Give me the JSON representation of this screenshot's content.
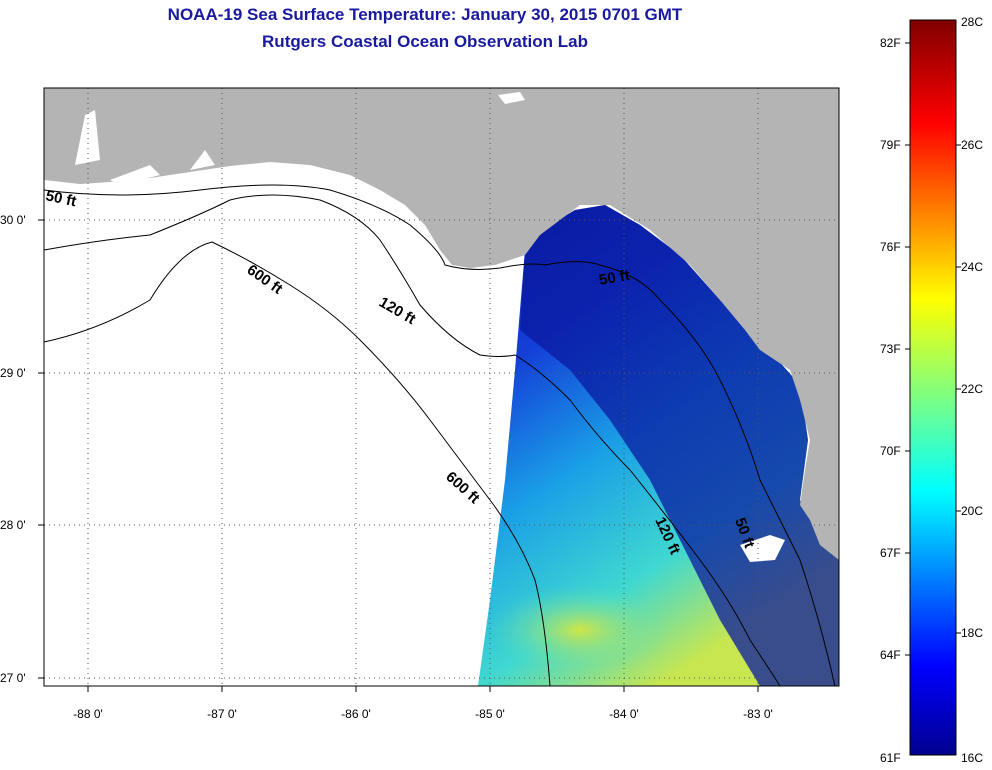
{
  "title": {
    "line1": "NOAA-19 Sea Surface Temperature:  January 30, 2015 0701 GMT",
    "line2": "Rutgers Coastal Ocean Observation Lab"
  },
  "map": {
    "lat_labels": [
      "30 0'",
      "29 0'",
      "28 0'",
      "27 0'"
    ],
    "lon_labels": [
      "-88 0'",
      "-87 0'",
      "-86 0'",
      "-85 0'",
      "-84 0'",
      "-83 0'"
    ],
    "contour_labels": [
      "50 ft",
      "600 ft",
      "120 ft",
      "50 ft",
      "600 ft",
      "120 ft",
      "50 ft"
    ],
    "colors": {
      "land": "#b4b4b4",
      "water_nodata": "#ffffff",
      "sst_cold": "#0a1aa0",
      "sst_mid": "#1aa0e6",
      "sst_warm": "#d8e640"
    }
  },
  "colorbar": {
    "f_labels": [
      "82F",
      "79F",
      "76F",
      "73F",
      "70F",
      "67F",
      "64F",
      "61F"
    ],
    "c_labels": [
      "28C",
      "26C",
      "24C",
      "22C",
      "20C",
      "18C",
      "16C"
    ]
  }
}
